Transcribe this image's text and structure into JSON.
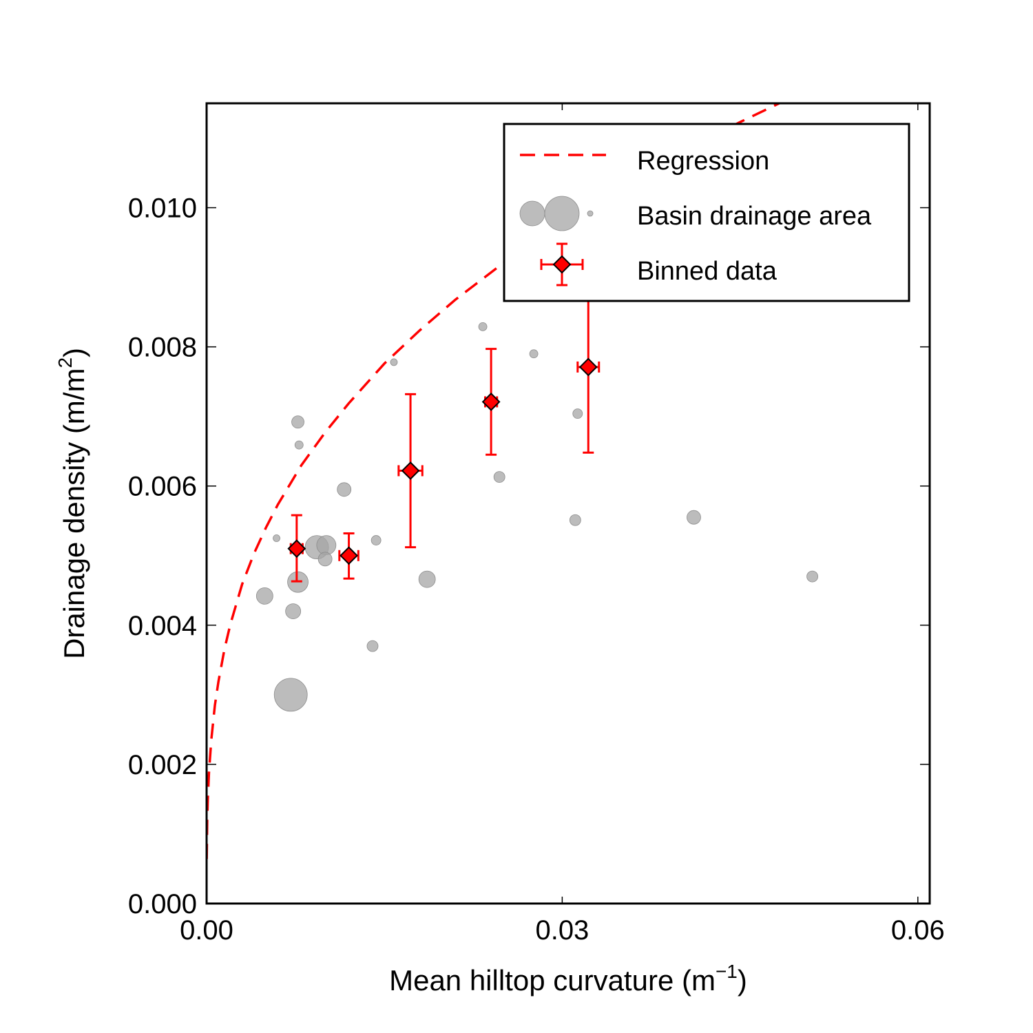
{
  "chart_data": {
    "type": "scatter",
    "title": "",
    "xlabel": "Mean hilltop curvature (m",
    "xlabel_sup": "−1",
    "xlabel_close": ")",
    "ylabel": "Drainage density (m/m",
    "ylabel_sup": "2",
    "ylabel_close": ")",
    "xlim": [
      0.0,
      0.061
    ],
    "ylim": [
      0.0,
      0.0115
    ],
    "grid": false,
    "legend_position": "top-right",
    "x_ticks": [
      {
        "value": 0.0,
        "label": "0.00"
      },
      {
        "value": 0.03,
        "label": "0.03"
      },
      {
        "value": 0.06,
        "label": "0.06"
      }
    ],
    "y_ticks": [
      {
        "value": 0.0,
        "label": "0.000"
      },
      {
        "value": 0.002,
        "label": "0.002"
      },
      {
        "value": 0.004,
        "label": "0.004"
      },
      {
        "value": 0.006,
        "label": "0.006"
      },
      {
        "value": 0.008,
        "label": "0.008"
      },
      {
        "value": 0.01,
        "label": "0.010"
      }
    ],
    "series": [
      {
        "name": "Regression",
        "kind": "line",
        "style": "dashed",
        "color": "#ff0000",
        "x": [
          1e-05,
          5e-05,
          0.0001,
          0.0002,
          0.0004,
          0.0007,
          0.001,
          0.0015,
          0.002,
          0.003,
          0.004,
          0.005,
          0.006,
          0.008,
          0.01,
          0.012,
          0.015,
          0.018,
          0.021,
          0.025,
          0.03,
          0.035,
          0.04,
          0.045,
          0.051
        ],
        "y": [
          0.00064,
          0.00118,
          0.00149,
          0.00188,
          0.00236,
          0.00285,
          0.00319,
          0.00365,
          0.00401,
          0.00459,
          0.00503,
          0.0054,
          0.00573,
          0.0063,
          0.00677,
          0.00719,
          0.00776,
          0.00824,
          0.00868,
          0.0092,
          0.00978,
          0.01031,
          0.01079,
          0.01123,
          0.01172
        ]
      },
      {
        "name": "Basin drainage area",
        "kind": "bubble",
        "color": "#a6a6a6",
        "points": [
          {
            "x": 0.0059,
            "y": 0.00525,
            "size": 5
          },
          {
            "x": 0.0077,
            "y": 0.00692,
            "size": 9
          },
          {
            "x": 0.0078,
            "y": 0.00659,
            "size": 6
          },
          {
            "x": 0.0049,
            "y": 0.00442,
            "size": 12
          },
          {
            "x": 0.0071,
            "y": 0.003,
            "size": 24
          },
          {
            "x": 0.0073,
            "y": 0.0042,
            "size": 11
          },
          {
            "x": 0.0077,
            "y": 0.00462,
            "size": 15
          },
          {
            "x": 0.0093,
            "y": 0.00512,
            "size": 17
          },
          {
            "x": 0.0101,
            "y": 0.00515,
            "size": 14
          },
          {
            "x": 0.01,
            "y": 0.00495,
            "size": 10
          },
          {
            "x": 0.0116,
            "y": 0.00595,
            "size": 10
          },
          {
            "x": 0.0143,
            "y": 0.00522,
            "size": 7
          },
          {
            "x": 0.014,
            "y": 0.0037,
            "size": 8
          },
          {
            "x": 0.0158,
            "y": 0.00778,
            "size": 5
          },
          {
            "x": 0.0186,
            "y": 0.00466,
            "size": 12
          },
          {
            "x": 0.0233,
            "y": 0.00829,
            "size": 6
          },
          {
            "x": 0.0247,
            "y": 0.00613,
            "size": 8
          },
          {
            "x": 0.0276,
            "y": 0.0079,
            "size": 6
          },
          {
            "x": 0.0311,
            "y": 0.00551,
            "size": 8
          },
          {
            "x": 0.0313,
            "y": 0.00704,
            "size": 7
          },
          {
            "x": 0.0411,
            "y": 0.00555,
            "size": 10
          },
          {
            "x": 0.0511,
            "y": 0.0047,
            "size": 8
          }
        ]
      },
      {
        "name": "Binned data",
        "kind": "errorbar",
        "color": "#ff0000",
        "marker": "diamond",
        "points": [
          {
            "x": 0.0076,
            "y": 0.0051,
            "xerr": 0.0005,
            "yerr_low": 0.00047,
            "yerr_high": 0.00048
          },
          {
            "x": 0.012,
            "y": 0.005,
            "xerr": 0.0008,
            "yerr_low": 0.00033,
            "yerr_high": 0.00032
          },
          {
            "x": 0.0172,
            "y": 0.00622,
            "xerr": 0.001,
            "yerr_low": 0.0011,
            "yerr_high": 0.0011
          },
          {
            "x": 0.024,
            "y": 0.00721,
            "xerr": 0.0005,
            "yerr_low": 0.00076,
            "yerr_high": 0.00076
          },
          {
            "x": 0.0322,
            "y": 0.00771,
            "xerr": 0.0009,
            "yerr_low": 0.00123,
            "yerr_high": 0.00123
          }
        ]
      }
    ]
  }
}
